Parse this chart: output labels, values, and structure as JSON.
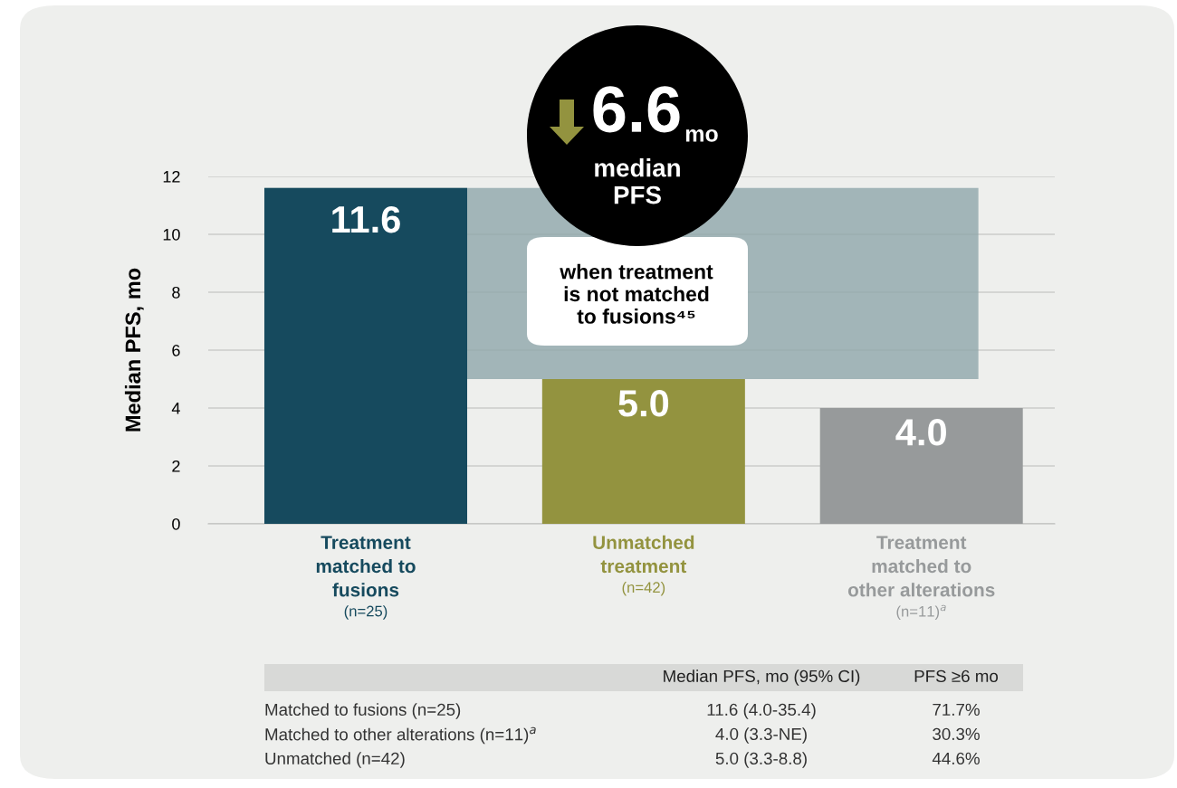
{
  "chart_data": {
    "type": "bar",
    "ylabel": "Median PFS, mo",
    "categories": [
      "Treatment\nmatched to\nfusions\n(n=25)",
      "Unmatched\ntreatment\n(n=42)",
      "Treatment\nmatched to\nother alterations\n(n=11)$^{a}$"
    ],
    "values": [
      11.6,
      5.0,
      4.0
    ],
    "colors": [
      "#164a5e",
      "#93933f",
      "#979a9b"
    ],
    "ylim": [
      0,
      12
    ],
    "yticks": [
      0,
      2,
      4,
      6,
      8,
      10,
      12
    ],
    "grid": "y",
    "value_labels": [
      "11.6",
      "5.0",
      "4.0"
    ],
    "annotations": [
      "6.6",
      "mo",
      "median\nPFS",
      "when treatment\nis not matched\nto fusions⁴⁵",
      "Median PFS, mo (95% CI)",
      "PFS ≥6 mo",
      "Matched to fusions (n=25)",
      "11.6 (4.0-35.4)",
      "71.7%",
      "Matched to other alterations (n=11)$^{a}$",
      "4.0 (3.3-NE)",
      "30.3%",
      "Unmatched (n=42)",
      "5.0 (3.3-8.8)",
      "44.6%"
    ]
  }
}
